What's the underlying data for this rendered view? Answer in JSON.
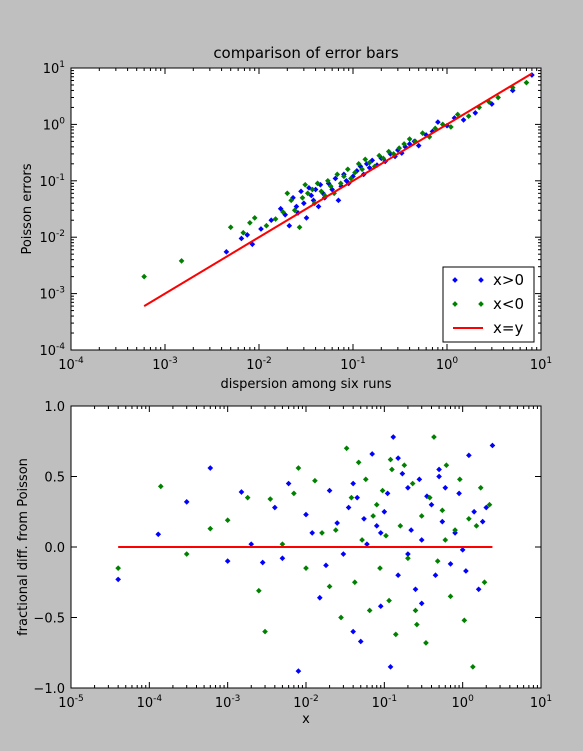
{
  "figure": {
    "background": "#bfbfbf"
  },
  "chart_data": [
    {
      "type": "scatter",
      "title": "comparison of error bars",
      "xlabel": "dispersion among six runs",
      "ylabel": "Poisson errors",
      "xscale": "log",
      "yscale": "log",
      "xlim": [
        0.0001,
        10
      ],
      "ylim": [
        0.0001,
        10
      ],
      "xticks": [
        {
          "base": "10",
          "exp": "-4"
        },
        {
          "base": "10",
          "exp": "-3"
        },
        {
          "base": "10",
          "exp": "-2"
        },
        {
          "base": "10",
          "exp": "-1"
        },
        {
          "base": "10",
          "exp": "0"
        },
        {
          "base": "10",
          "exp": "1"
        }
      ],
      "yticks": [
        {
          "base": "10",
          "exp": "-4"
        },
        {
          "base": "10",
          "exp": "-3"
        },
        {
          "base": "10",
          "exp": "-2"
        },
        {
          "base": "10",
          "exp": "-1"
        },
        {
          "base": "10",
          "exp": "0"
        },
        {
          "base": "10",
          "exp": "1"
        }
      ],
      "legend": {
        "placement": "lower-right",
        "entries": [
          "x>0",
          "x<0",
          "x=y"
        ]
      },
      "series": [
        {
          "name": "x>0",
          "color": "#0000ff",
          "marker": "diamond",
          "x": [
            0.0045,
            0.0065,
            0.0075,
            0.0085,
            0.0105,
            0.0135,
            0.017,
            0.019,
            0.021,
            0.023,
            0.025,
            0.026,
            0.028,
            0.03,
            0.032,
            0.034,
            0.036,
            0.038,
            0.04,
            0.043,
            0.045,
            0.048,
            0.05,
            0.055,
            0.06,
            0.065,
            0.07,
            0.075,
            0.08,
            0.085,
            0.09,
            0.1,
            0.11,
            0.12,
            0.13,
            0.14,
            0.15,
            0.16,
            0.18,
            0.2,
            0.22,
            0.25,
            0.28,
            0.3,
            0.33,
            0.36,
            0.4,
            0.45,
            0.5,
            0.6,
            0.7,
            0.8,
            1.0,
            1.2,
            1.5,
            2.0,
            3.0,
            5.0,
            8.0
          ],
          "y": [
            0.0055,
            0.0095,
            0.011,
            0.0075,
            0.014,
            0.02,
            0.032,
            0.025,
            0.016,
            0.05,
            0.035,
            0.027,
            0.065,
            0.04,
            0.022,
            0.075,
            0.055,
            0.045,
            0.07,
            0.035,
            0.085,
            0.06,
            0.05,
            0.09,
            0.07,
            0.11,
            0.045,
            0.08,
            0.13,
            0.1,
            0.09,
            0.12,
            0.15,
            0.18,
            0.13,
            0.2,
            0.17,
            0.23,
            0.19,
            0.25,
            0.22,
            0.3,
            0.27,
            0.35,
            0.31,
            0.4,
            0.45,
            0.5,
            0.42,
            0.65,
            0.75,
            1.1,
            0.95,
            1.3,
            1.2,
            1.6,
            2.3,
            4.0,
            7.5
          ]
        },
        {
          "name": "x<0",
          "color": "#008000",
          "marker": "diamond",
          "x": [
            0.0006,
            0.0015,
            0.005,
            0.0068,
            0.008,
            0.009,
            0.012,
            0.015,
            0.018,
            0.02,
            0.022,
            0.024,
            0.027,
            0.029,
            0.031,
            0.033,
            0.037,
            0.039,
            0.042,
            0.046,
            0.05,
            0.054,
            0.058,
            0.063,
            0.068,
            0.074,
            0.08,
            0.088,
            0.095,
            0.105,
            0.115,
            0.125,
            0.135,
            0.15,
            0.17,
            0.19,
            0.21,
            0.24,
            0.27,
            0.31,
            0.35,
            0.4,
            0.46,
            0.55,
            0.65,
            0.75,
            0.9,
            1.1,
            1.3,
            1.7,
            2.2,
            2.8,
            3.5,
            5.0,
            7.0
          ],
          "y": [
            0.002,
            0.0038,
            0.015,
            0.012,
            0.018,
            0.022,
            0.016,
            0.021,
            0.028,
            0.06,
            0.045,
            0.03,
            0.015,
            0.05,
            0.085,
            0.06,
            0.07,
            0.04,
            0.09,
            0.065,
            0.055,
            0.1,
            0.08,
            0.06,
            0.13,
            0.09,
            0.12,
            0.16,
            0.11,
            0.14,
            0.2,
            0.16,
            0.24,
            0.21,
            0.18,
            0.28,
            0.25,
            0.33,
            0.3,
            0.38,
            0.45,
            0.55,
            0.5,
            0.7,
            0.6,
            0.85,
            1.0,
            0.9,
            1.5,
            1.4,
            2.0,
            2.5,
            3.0,
            4.5,
            5.5
          ]
        }
      ],
      "line": {
        "name": "x=y",
        "color": "#ff0000",
        "x": [
          0.0006,
          8.0
        ],
        "y": [
          0.0006,
          8.0
        ]
      }
    },
    {
      "type": "scatter",
      "title": "",
      "xlabel": "x",
      "ylabel": "fractional diff. from Poisson",
      "xscale": "log",
      "yscale": "linear",
      "xlim": [
        1e-05,
        10
      ],
      "ylim": [
        -1.0,
        1.0
      ],
      "xticks": [
        {
          "base": "10",
          "exp": "-5"
        },
        {
          "base": "10",
          "exp": "-4"
        },
        {
          "base": "10",
          "exp": "-3"
        },
        {
          "base": "10",
          "exp": "-2"
        },
        {
          "base": "10",
          "exp": "-1"
        },
        {
          "base": "10",
          "exp": "0"
        },
        {
          "base": "10",
          "exp": "1"
        }
      ],
      "yticks": [
        "1.0",
        "0.5",
        "0.0",
        "−0.5",
        "−1.0"
      ],
      "ytick_values": [
        1.0,
        0.5,
        0.0,
        -0.5,
        -1.0
      ],
      "series": [
        {
          "name": "x>0",
          "color": "#0000ff",
          "marker": "diamond",
          "x": [
            4e-05,
            0.00013,
            0.0003,
            0.0006,
            0.001,
            0.0015,
            0.002,
            0.0028,
            0.004,
            0.005,
            0.006,
            0.008,
            0.01,
            0.012,
            0.015,
            0.018,
            0.02,
            0.025,
            0.03,
            0.035,
            0.04,
            0.045,
            0.05,
            0.055,
            0.06,
            0.07,
            0.08,
            0.09,
            0.1,
            0.11,
            0.12,
            0.13,
            0.15,
            0.17,
            0.2,
            0.22,
            0.25,
            0.28,
            0.3,
            0.35,
            0.4,
            0.45,
            0.5,
            0.55,
            0.6,
            0.7,
            0.8,
            0.9,
            1.0,
            1.2,
            1.4,
            1.6,
            1.8,
            2.0,
            2.4,
            0.15,
            0.3,
            0.5,
            1.1,
            0.04,
            0.09,
            0.2
          ],
          "y": [
            -0.23,
            0.09,
            0.32,
            0.56,
            -0.1,
            0.39,
            0.02,
            -0.11,
            0.28,
            -0.08,
            0.45,
            -0.88,
            0.23,
            0.1,
            -0.36,
            -0.13,
            0.4,
            0.17,
            -0.05,
            0.28,
            -0.6,
            0.35,
            -0.67,
            0.2,
            0.02,
            0.66,
            0.15,
            -0.42,
            0.25,
            0.38,
            -0.85,
            0.78,
            -0.2,
            0.52,
            0.42,
            0.12,
            -0.3,
            0.48,
            0.05,
            0.36,
            0.3,
            -0.2,
            0.55,
            0.18,
            0.42,
            -0.12,
            0.1,
            0.38,
            -0.02,
            0.65,
            0.25,
            -0.3,
            0.18,
            0.28,
            0.72,
            0.63,
            -0.4,
            0.5,
            -0.17,
            0.45,
            0.1,
            -0.05
          ],
          "clip": true
        },
        {
          "name": "x<0",
          "color": "#008000",
          "marker": "diamond",
          "x": [
            4e-05,
            0.00014,
            0.0003,
            0.0006,
            0.001,
            0.0018,
            0.0025,
            0.003,
            0.0035,
            0.005,
            0.007,
            0.008,
            0.01,
            0.013,
            0.016,
            0.02,
            0.024,
            0.028,
            0.033,
            0.038,
            0.042,
            0.047,
            0.052,
            0.058,
            0.065,
            0.072,
            0.08,
            0.088,
            0.095,
            0.105,
            0.115,
            0.125,
            0.14,
            0.16,
            0.18,
            0.2,
            0.23,
            0.26,
            0.3,
            0.34,
            0.38,
            0.43,
            0.48,
            0.55,
            0.62,
            0.7,
            0.8,
            0.92,
            1.05,
            1.2,
            1.35,
            1.5,
            1.7,
            1.9,
            2.2,
            0.12,
            0.25,
            0.6
          ],
          "y": [
            -0.15,
            0.43,
            -0.05,
            0.13,
            0.19,
            0.35,
            -0.31,
            -0.6,
            0.34,
            0.02,
            0.38,
            0.56,
            -0.15,
            0.47,
            0.1,
            -0.28,
            0.12,
            -0.5,
            0.7,
            0.35,
            -0.25,
            0.6,
            0.05,
            0.48,
            -0.45,
            0.22,
            0.3,
            -0.15,
            0.4,
            0.08,
            -0.38,
            0.55,
            -0.62,
            0.15,
            0.58,
            -0.08,
            0.45,
            -0.55,
            0.22,
            -0.68,
            0.35,
            0.78,
            -0.1,
            0.26,
            0.58,
            -0.35,
            0.12,
            0.48,
            -0.52,
            0.2,
            -0.85,
            0.15,
            0.42,
            -0.25,
            0.3,
            0.62,
            -0.45,
            0.05
          ],
          "clip": true
        }
      ],
      "line": {
        "name": "",
        "color": "#ff0000",
        "x": [
          4e-05,
          2.4
        ],
        "y": [
          0.0,
          0.0
        ]
      }
    }
  ]
}
